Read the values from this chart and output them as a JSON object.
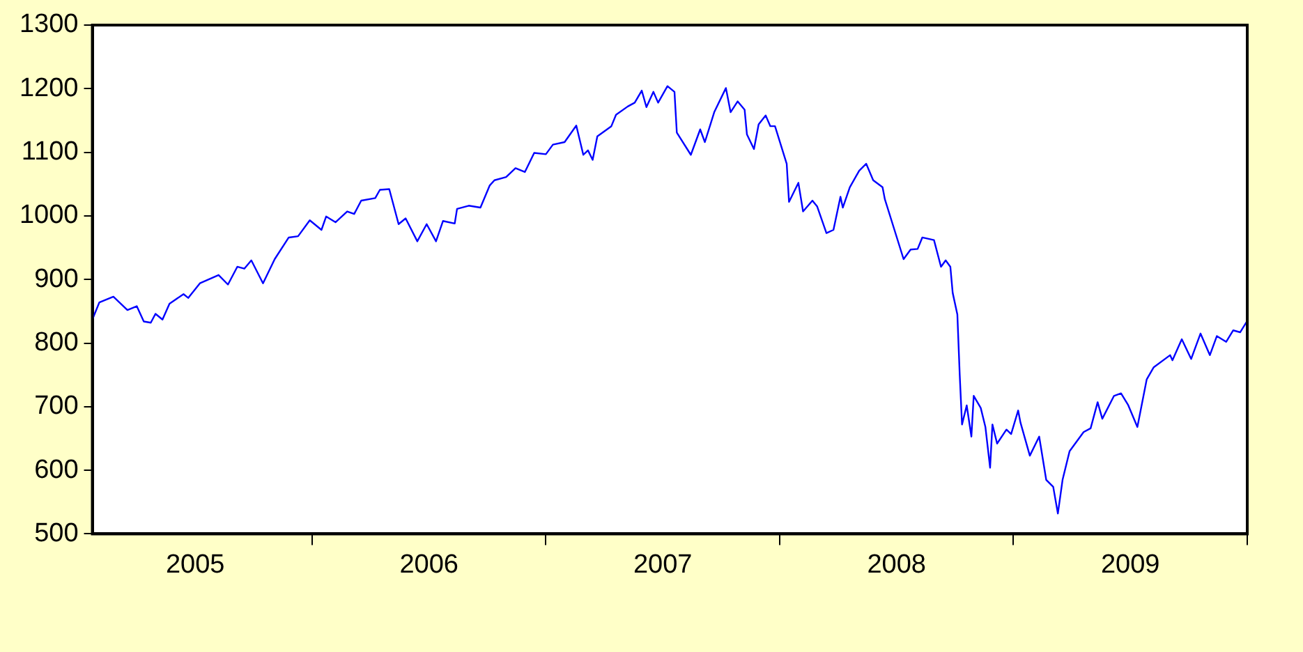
{
  "chart_data": {
    "type": "line",
    "x": [
      2005.06,
      2005.09,
      2005.15,
      2005.21,
      2005.25,
      2005.28,
      2005.31,
      2005.33,
      2005.36,
      2005.39,
      2005.45,
      2005.47,
      2005.52,
      2005.6,
      2005.64,
      2005.68,
      2005.71,
      2005.74,
      2005.79,
      2005.84,
      2005.9,
      2005.94,
      2005.99,
      2006.04,
      2006.06,
      2006.1,
      2006.15,
      2006.18,
      2006.21,
      2006.27,
      2006.29,
      2006.33,
      2006.37,
      2006.4,
      2006.45,
      2006.49,
      2006.53,
      2006.56,
      2006.61,
      2006.62,
      2006.67,
      2006.72,
      2006.76,
      2006.78,
      2006.83,
      2006.87,
      2006.91,
      2006.95,
      2007.0,
      2007.03,
      2007.08,
      2007.13,
      2007.16,
      2007.18,
      2007.2,
      2007.22,
      2007.28,
      2007.3,
      2007.35,
      2007.38,
      2007.41,
      2007.43,
      2007.46,
      2007.48,
      2007.52,
      2007.55,
      2007.56,
      2007.62,
      2007.66,
      2007.68,
      2007.72,
      2007.77,
      2007.79,
      2007.82,
      2007.85,
      2007.86,
      2007.89,
      2007.91,
      2007.94,
      2007.96,
      2007.98,
      2008.03,
      2008.04,
      2008.08,
      2008.1,
      2008.14,
      2008.16,
      2008.2,
      2008.23,
      2008.26,
      2008.27,
      2008.3,
      2008.34,
      2008.37,
      2008.4,
      2008.44,
      2008.45,
      2008.53,
      2008.56,
      2008.59,
      2008.61,
      2008.66,
      2008.69,
      2008.71,
      2008.73,
      2008.74,
      2008.76,
      2008.77,
      2008.78,
      2008.8,
      2008.82,
      2008.83,
      2008.86,
      2008.88,
      2008.9,
      2008.91,
      2008.93,
      2008.97,
      2008.99,
      2009.02,
      2009.03,
      2009.07,
      2009.11,
      2009.14,
      2009.17,
      2009.19,
      2009.21,
      2009.24,
      2009.3,
      2009.33,
      2009.36,
      2009.38,
      2009.43,
      2009.46,
      2009.49,
      2009.53,
      2009.57,
      2009.6,
      2009.67,
      2009.68,
      2009.72,
      2009.76,
      2009.8,
      2009.84,
      2009.87,
      2009.91,
      2009.94,
      2009.97,
      2010.0
    ],
    "series": [
      {
        "color": "#0000ff",
        "values": [
          837,
          864,
          873,
          852,
          858,
          834,
          832,
          846,
          837,
          862,
          877,
          871,
          894,
          907,
          892,
          920,
          917,
          930,
          894,
          932,
          966,
          968,
          993,
          978,
          999,
          990,
          1007,
          1003,
          1024,
          1028,
          1041,
          1042,
          987,
          996,
          960,
          987,
          960,
          992,
          988,
          1011,
          1016,
          1013,
          1048,
          1056,
          1061,
          1075,
          1069,
          1099,
          1097,
          1112,
          1116,
          1142,
          1096,
          1103,
          1088,
          1125,
          1141,
          1159,
          1172,
          1178,
          1197,
          1171,
          1195,
          1178,
          1204,
          1195,
          1131,
          1096,
          1136,
          1116,
          1163,
          1201,
          1163,
          1180,
          1167,
          1128,
          1105,
          1144,
          1158,
          1141,
          1141,
          1082,
          1022,
          1052,
          1007,
          1024,
          1015,
          973,
          978,
          1030,
          1013,
          1045,
          1071,
          1082,
          1056,
          1045,
          1026,
          932,
          947,
          948,
          966,
          962,
          920,
          930,
          920,
          879,
          845,
          751,
          672,
          702,
          653,
          717,
          698,
          668,
          604,
          672,
          642,
          664,
          657,
          694,
          675,
          623,
          653,
          585,
          574,
          532,
          585,
          630,
          660,
          666,
          707,
          681,
          717,
          721,
          703,
          668,
          743,
          762,
          781,
          773,
          806,
          775,
          815,
          781,
          811,
          802,
          820,
          817,
          835
        ]
      }
    ],
    "xlim": [
      2005.06,
      2010.0
    ],
    "xticks": [
      {
        "value": 2005.5,
        "label": "2005"
      },
      {
        "value": 2006,
        "label": null
      },
      {
        "value": 2006.5,
        "label": "2006"
      },
      {
        "value": 2007,
        "label": null
      },
      {
        "value": 2007.5,
        "label": "2007"
      },
      {
        "value": 2008,
        "label": null
      },
      {
        "value": 2008.5,
        "label": "2008"
      },
      {
        "value": 2009,
        "label": null
      },
      {
        "value": 2009.5,
        "label": "2009"
      },
      {
        "value": 2010,
        "label": null
      }
    ],
    "ylim": [
      500,
      1300
    ],
    "yticks": [
      500,
      600,
      700,
      800,
      900,
      1000,
      1100,
      1200,
      1300
    ],
    "grid": false,
    "legend": false,
    "marker": "none",
    "line_style": "solid"
  }
}
